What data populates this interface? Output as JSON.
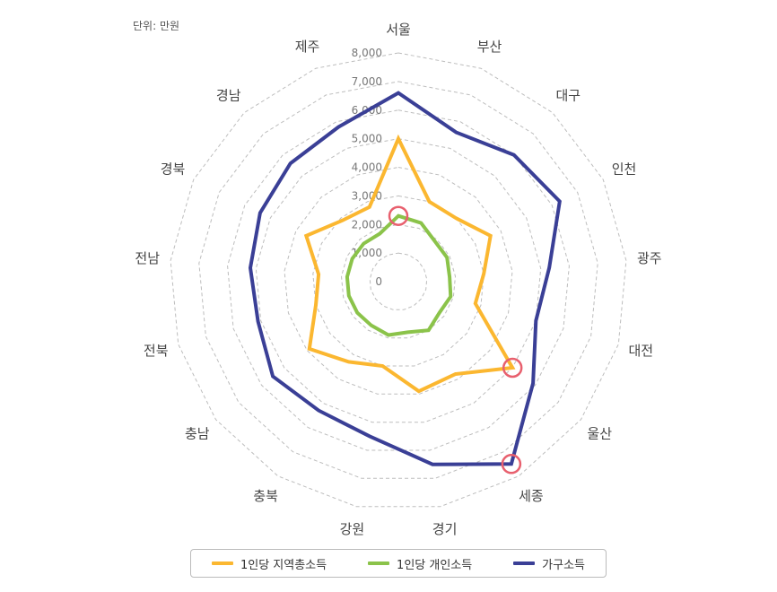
{
  "unit_note": "단위: 만원",
  "chart_data": {
    "type": "radar",
    "categories": [
      "서울",
      "부산",
      "대구",
      "인천",
      "광주",
      "대전",
      "울산",
      "세종",
      "경기",
      "강원",
      "충북",
      "충남",
      "전북",
      "전남",
      "경북",
      "경남",
      "제주"
    ],
    "ticks": [
      0,
      1000,
      2000,
      3000,
      4000,
      5000,
      6000,
      7000,
      8000
    ],
    "tick_labels": [
      "0",
      "1,000",
      "2,000",
      "3,000",
      "4,000",
      "5,000",
      "6,000",
      "7,000",
      "8,000"
    ],
    "rlim": [
      0,
      8000
    ],
    "grid": true,
    "legend_position": "bottom",
    "series": [
      {
        "name": "1인당 지역총소득",
        "color": "#FBB730",
        "values": [
          5000,
          3000,
          3000,
          3600,
          3000,
          2800,
          5000,
          3800,
          3900,
          3000,
          3300,
          3900,
          3000,
          2800,
          3600,
          2900,
          2800
        ]
      },
      {
        "name": "1인당 개인소득",
        "color": "#8BC34A",
        "values": [
          2300,
          2200,
          1900,
          1900,
          1800,
          1900,
          1800,
          2000,
          1800,
          1900,
          1800,
          1800,
          1800,
          1800,
          1800,
          1800,
          1800
        ]
      },
      {
        "name": "가구소득",
        "color": "#3A3F96",
        "values": [
          6600,
          5600,
          6000,
          6300,
          5300,
          5000,
          5900,
          7500,
          6500,
          5500,
          5300,
          5500,
          5100,
          5200,
          5400,
          5600,
          5800
        ]
      }
    ],
    "highlights": [
      {
        "series": "1인당 개인소득",
        "category": "서울"
      },
      {
        "series": "1인당 지역총소득",
        "category": "울산"
      },
      {
        "series": "가구소득",
        "category": "세종"
      }
    ]
  }
}
